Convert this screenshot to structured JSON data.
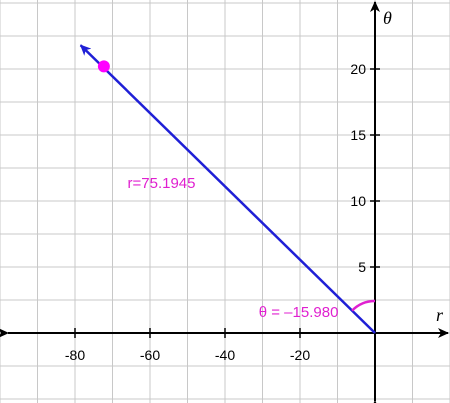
{
  "chart_data": {
    "type": "line",
    "title": "",
    "xlabel": "r",
    "ylabel": "θ",
    "xlim": [
      -100,
      20
    ],
    "ylim": [
      -5,
      25
    ],
    "grid": true,
    "x_ticks": [
      -80,
      -60,
      -40,
      -20
    ],
    "y_ticks": [
      5,
      10,
      15,
      20
    ],
    "x_tick_labels": [
      "-80",
      "-60",
      "-40",
      "-20"
    ],
    "y_tick_labels": [
      "5",
      "10",
      "15",
      "20"
    ],
    "segment": {
      "from": [
        0,
        0
      ],
      "to": [
        -78.5,
        21.8
      ],
      "arrow": true
    },
    "point": {
      "x": -72.3,
      "y": 20.2
    },
    "annotations": {
      "r_label": {
        "text": "r=75.1945",
        "x": -66,
        "y": 11
      },
      "theta_label": {
        "text": "θ = –15.980",
        "x": -31,
        "y": 1.2
      }
    },
    "colors": {
      "line": "#1f1fd6",
      "point": "#ff00ff",
      "annotation": "#e020d0",
      "grid": "#c8c8c8",
      "axis": "#000000"
    }
  }
}
